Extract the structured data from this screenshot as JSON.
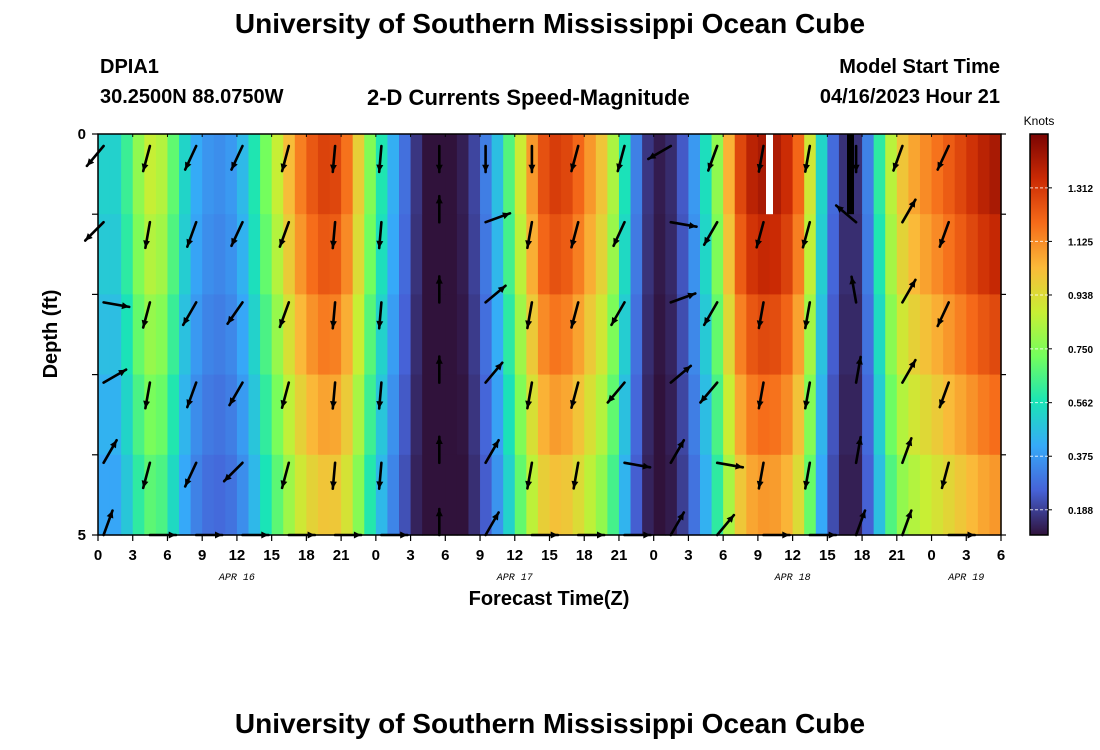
{
  "header": {
    "title": "University of Southern Mississippi Ocean Cube",
    "station_id": "DPIA1",
    "station_coords": "30.2500N  88.0750W",
    "plot_title": "2-D Currents Speed-Magnitude",
    "model_start_label": "Model Start Time",
    "model_start_value": "04/16/2023 Hour 21"
  },
  "footer": {
    "title": "University of Southern Mississippi Ocean Cube"
  },
  "chart_data": {
    "type": "heatmap",
    "title": "2-D Currents Speed-Magnitude",
    "xlabel": "Forecast Time(Z)",
    "ylabel": "Depth (ft)",
    "x_unit": "hours since 04/16 00Z",
    "xlim": [
      0,
      78
    ],
    "ylim": [
      0,
      5
    ],
    "y_tick_labels": [
      {
        "depth": 0,
        "label": "0"
      },
      {
        "depth": 5,
        "label": "5"
      }
    ],
    "x_ticks": [
      {
        "hour": 0,
        "label": "0"
      },
      {
        "hour": 3,
        "label": "3"
      },
      {
        "hour": 6,
        "label": "6"
      },
      {
        "hour": 9,
        "label": "9"
      },
      {
        "hour": 12,
        "label": "12"
      },
      {
        "hour": 15,
        "label": "15"
      },
      {
        "hour": 18,
        "label": "18"
      },
      {
        "hour": 21,
        "label": "21"
      },
      {
        "hour": 24,
        "label": "0"
      },
      {
        "hour": 27,
        "label": "3"
      },
      {
        "hour": 30,
        "label": "6"
      },
      {
        "hour": 33,
        "label": "9"
      },
      {
        "hour": 36,
        "label": "12"
      },
      {
        "hour": 39,
        "label": "15"
      },
      {
        "hour": 42,
        "label": "18"
      },
      {
        "hour": 45,
        "label": "21"
      },
      {
        "hour": 48,
        "label": "0"
      },
      {
        "hour": 51,
        "label": "3"
      },
      {
        "hour": 54,
        "label": "6"
      },
      {
        "hour": 57,
        "label": "9"
      },
      {
        "hour": 60,
        "label": "12"
      },
      {
        "hour": 63,
        "label": "15"
      },
      {
        "hour": 66,
        "label": "18"
      },
      {
        "hour": 69,
        "label": "21"
      },
      {
        "hour": 72,
        "label": "0"
      },
      {
        "hour": 75,
        "label": "3"
      },
      {
        "hour": 78,
        "label": "6"
      }
    ],
    "date_labels": [
      {
        "hour": 12,
        "label": "APR 16"
      },
      {
        "hour": 36,
        "label": "APR 17"
      },
      {
        "hour": 60,
        "label": "APR 18"
      },
      {
        "hour": 75,
        "label": "APR 19"
      }
    ],
    "colorbar": {
      "unit": "Knots",
      "min": 0.1,
      "max": 1.5,
      "ticks": [
        0.188,
        0.375,
        0.562,
        0.75,
        0.938,
        1.125,
        1.312
      ],
      "tick_labels": [
        "0.188",
        "0.375",
        "0.562",
        "0.750",
        "0.938",
        "1.125",
        "1.312"
      ],
      "colors": [
        "#30123b",
        "#4662d7",
        "#36aaf9",
        "#1ae4b6",
        "#72fe5e",
        "#c8ef34",
        "#faba39",
        "#f66b19",
        "#ca2a04",
        "#7a0403"
      ]
    },
    "depth_levels": [
      0,
      1,
      2,
      3,
      4,
      5
    ],
    "time_nodes": [
      0,
      1,
      2,
      3,
      4,
      5,
      6,
      7,
      8,
      9,
      10,
      11,
      12,
      13,
      14,
      15,
      16,
      17,
      18,
      19,
      20,
      21,
      22,
      23,
      24,
      25,
      26,
      27,
      28,
      29,
      30,
      31,
      32,
      33,
      34,
      35,
      36,
      37,
      38,
      39,
      40,
      41,
      42,
      43,
      44,
      45,
      46,
      47,
      48,
      49,
      50,
      51,
      52,
      53,
      54,
      55,
      56,
      57,
      58,
      59,
      60,
      61,
      62,
      63,
      64,
      65,
      66,
      67,
      68,
      69,
      70,
      71,
      72,
      73,
      74,
      75,
      76,
      77,
      78
    ],
    "speed_profile": [
      0.55,
      0.48,
      0.55,
      0.7,
      0.85,
      0.9,
      0.78,
      0.6,
      0.45,
      0.38,
      0.35,
      0.35,
      0.4,
      0.5,
      0.65,
      0.8,
      0.95,
      1.1,
      1.2,
      1.27,
      1.3,
      1.25,
      1.1,
      0.85,
      0.65,
      0.5,
      0.35,
      0.22,
      0.12,
      0.08,
      0.08,
      0.1,
      0.15,
      0.25,
      0.38,
      0.55,
      0.78,
      1.0,
      1.2,
      1.3,
      1.3,
      1.25,
      1.15,
      1.05,
      0.95,
      0.7,
      0.42,
      0.22,
      0.12,
      0.12,
      0.18,
      0.3,
      0.45,
      0.65,
      0.9,
      1.2,
      1.35,
      1.4,
      1.42,
      1.38,
      1.3,
      1.1,
      0.7,
      0.35,
      0.2,
      0.12,
      0.2,
      0.45,
      0.75,
      0.95,
      1.05,
      1.1,
      1.15,
      1.2,
      1.25,
      1.3,
      1.35,
      1.4,
      1.42
    ],
    "depth_factors": [
      1.0,
      0.96,
      0.9,
      0.84,
      0.78
    ],
    "arrow_rows_depth": [
      0.15,
      1.1,
      2.1,
      3.1,
      4.1,
      5.0
    ],
    "arrow_hours": [
      1,
      5,
      9,
      13,
      17,
      21,
      25,
      30,
      34,
      38,
      42,
      46,
      50,
      54,
      58,
      62,
      66,
      70,
      74
    ],
    "arrow_angles_deg": [
      [
        130,
        105,
        115,
        115,
        105,
        95,
        95,
        90,
        90,
        90,
        105,
        105,
        150,
        110,
        100,
        100,
        90,
        110,
        115
      ],
      [
        135,
        100,
        110,
        115,
        110,
        95,
        95,
        270,
        340,
        100,
        105,
        115,
        10,
        120,
        105,
        105,
        220,
        300,
        110
      ],
      [
        10,
        105,
        120,
        125,
        110,
        95,
        95,
        270,
        320,
        100,
        105,
        120,
        340,
        120,
        100,
        100,
        260,
        300,
        115
      ],
      [
        330,
        100,
        110,
        120,
        105,
        95,
        95,
        270,
        310,
        100,
        105,
        130,
        320,
        130,
        100,
        100,
        280,
        300,
        110
      ],
      [
        300,
        105,
        115,
        135,
        105,
        95,
        95,
        270,
        300,
        100,
        100,
        10,
        300,
        10,
        100,
        100,
        280,
        290,
        105
      ],
      [
        290,
        0,
        0,
        0,
        0,
        0,
        0,
        270,
        300,
        0,
        0,
        0,
        300,
        310,
        0,
        0,
        290,
        290,
        0
      ]
    ],
    "bad_data_columns": [
      {
        "hour": 58,
        "color": "#ffffff",
        "depth_to": 1
      },
      {
        "hour": 65,
        "color": "#000000",
        "depth_to": 1
      }
    ]
  }
}
